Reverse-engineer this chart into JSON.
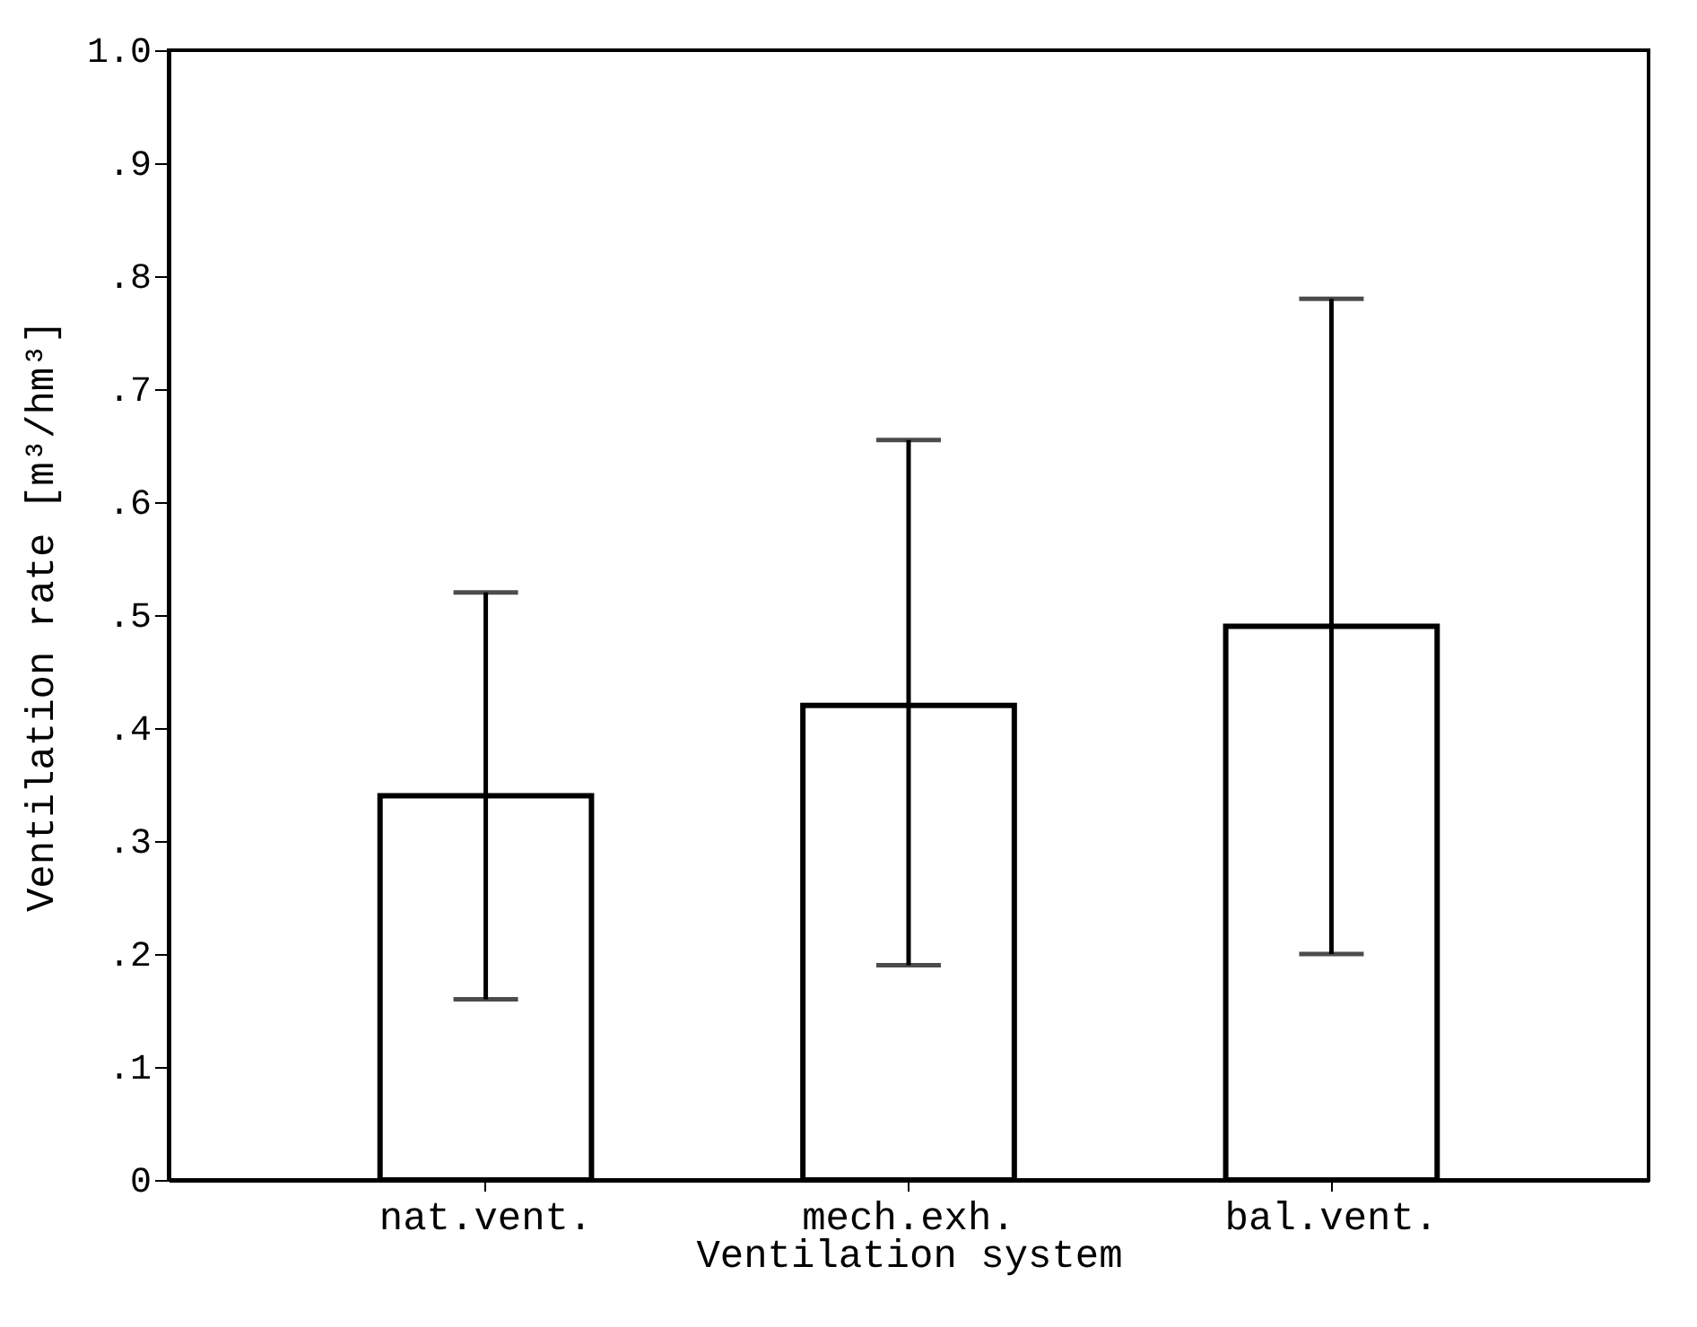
{
  "chart_data": {
    "type": "bar",
    "xlabel": "Ventilation system",
    "ylabel": "Ventilation rate [m³/hm³]",
    "categories": [
      "nat.vent.",
      "mech.exh.",
      "bal.vent."
    ],
    "values": [
      0.34,
      0.42,
      0.49
    ],
    "errors": [
      [
        0.16,
        0.52
      ],
      [
        0.19,
        0.655
      ],
      [
        0.2,
        0.78
      ]
    ],
    "color": "#ffffff",
    "ylim": [
      0,
      1.0
    ],
    "yticks": [
      {
        "value": 0,
        "label": "0"
      },
      {
        "value": 0.1,
        "label": ".1"
      },
      {
        "value": 0.2,
        "label": ".2"
      },
      {
        "value": 0.3,
        "label": ".3"
      },
      {
        "value": 0.4,
        "label": ".4"
      },
      {
        "value": 0.5,
        "label": ".5"
      },
      {
        "value": 0.6,
        "label": ".6"
      },
      {
        "value": 0.7,
        "label": ".7"
      },
      {
        "value": 0.8,
        "label": ".8"
      },
      {
        "value": 0.9,
        "label": ".9"
      },
      {
        "value": 1.0,
        "label": "1.0"
      }
    ],
    "grid": false
  }
}
